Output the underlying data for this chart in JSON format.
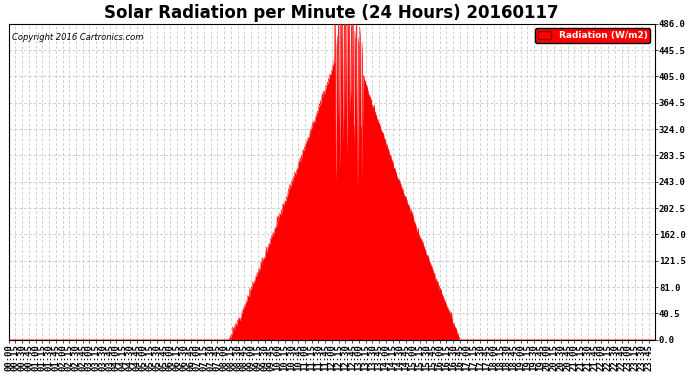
{
  "title": "Solar Radiation per Minute (24 Hours) 20160117",
  "copyright_text": "Copyright 2016 Cartronics.com",
  "legend_label": "Radiation (W/m2)",
  "fill_color": "#FF0000",
  "line_color": "#FF0000",
  "dashed_line_color": "#FF0000",
  "grid_color": "#BBBBBB",
  "background_color": "#FFFFFF",
  "yticks": [
    0.0,
    40.5,
    81.0,
    121.5,
    162.0,
    202.5,
    243.0,
    283.5,
    324.0,
    364.5,
    405.0,
    445.5,
    486.0
  ],
  "ymin": 0.0,
  "ymax": 486.0,
  "title_fontsize": 12,
  "tick_fontsize": 6.5,
  "total_minutes": 1440,
  "sunrise_minute": 490,
  "sunset_minute": 1005,
  "peak_minute": 755,
  "peak_value": 486.0
}
